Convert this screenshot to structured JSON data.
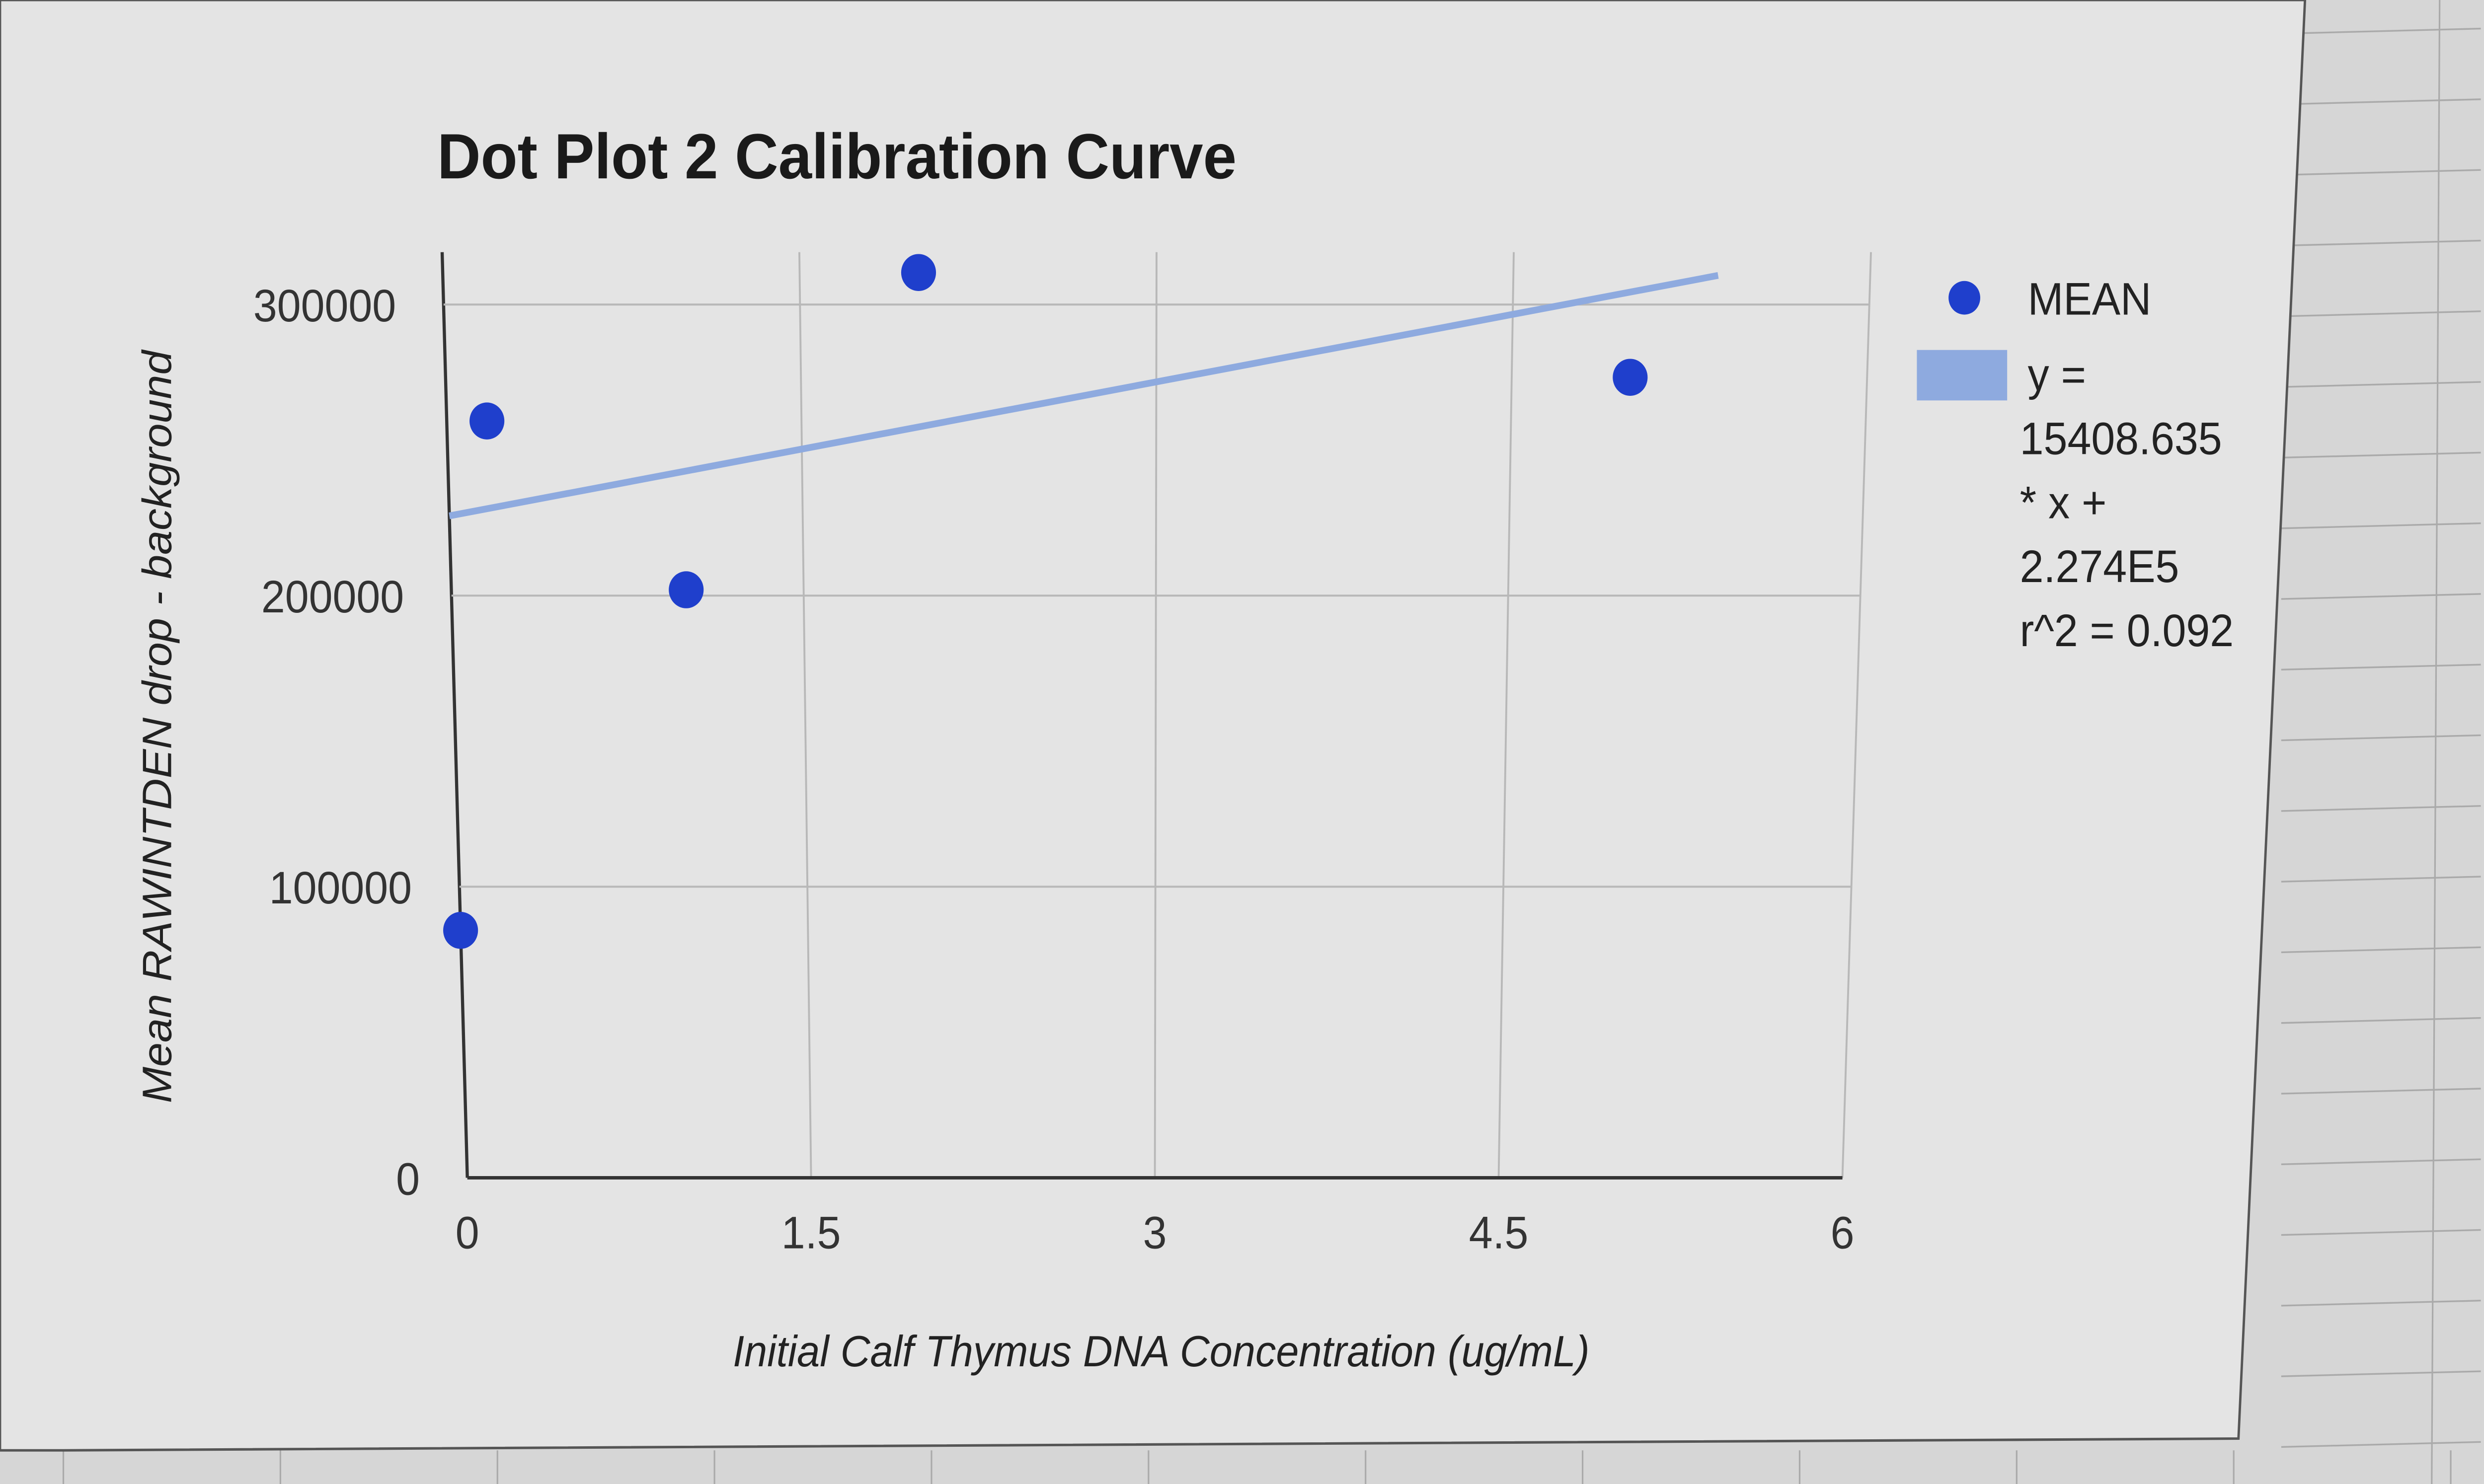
{
  "chart_data": {
    "type": "scatter",
    "title": "Dot Plot 2 Calibration Curve",
    "xlabel": "Initial Calf Thymus DNA Concentration (ug/mL)",
    "ylabel": "Mean RAWINTDEN drop - background",
    "xlim": [
      0,
      6
    ],
    "ylim": [
      0,
      300000
    ],
    "x_ticks": [
      "0",
      "1.5",
      "3",
      "4.5",
      "6"
    ],
    "y_ticks": [
      "0",
      "100000",
      "200000",
      "300000"
    ],
    "grid": true,
    "legend_position": "right",
    "series": [
      {
        "name": "MEAN",
        "color": "#1f3fcc",
        "points": [
          {
            "x": 0,
            "y": 85000
          },
          {
            "x": 0.17,
            "y": 260000
          },
          {
            "x": 1.0,
            "y": 202000
          },
          {
            "x": 2.0,
            "y": 311000
          },
          {
            "x": 5.0,
            "y": 275000
          }
        ]
      }
    ],
    "trendline": {
      "type": "linear",
      "slope": 15408.635,
      "intercept": 227400,
      "color": "#8eaadf",
      "legend_lines": [
        "y =",
        "15408.635",
        "* x +",
        "2.274E5",
        "r^2 = 0.092"
      ]
    }
  }
}
